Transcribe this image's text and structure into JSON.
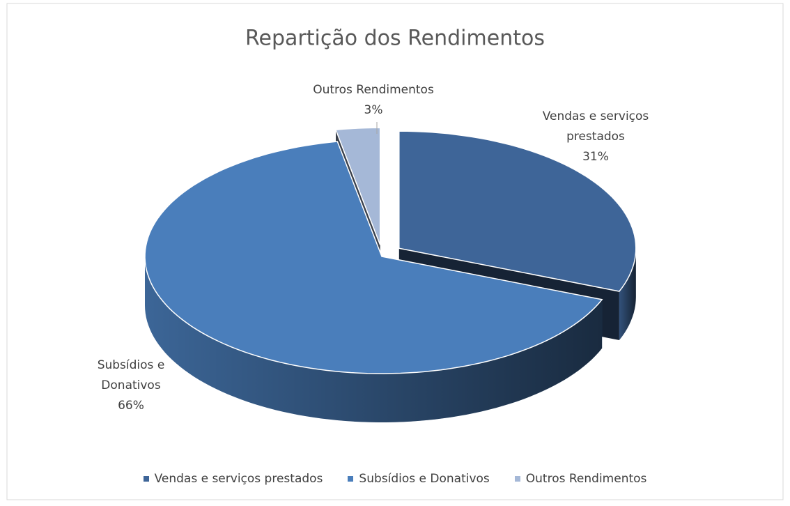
{
  "chart_data": {
    "type": "pie3d",
    "title": "Repartição dos Rendimentos",
    "categories": [
      "Vendas e serviços prestados",
      "Subsídios e Donativos",
      "Outros Rendimentos"
    ],
    "values": [
      31,
      66,
      3
    ],
    "value_labels": [
      "31%",
      "66%",
      "3%"
    ],
    "colors": [
      "#3e6598",
      "#4a7ebb",
      "#a5b8d7"
    ],
    "legend": "bottom"
  }
}
